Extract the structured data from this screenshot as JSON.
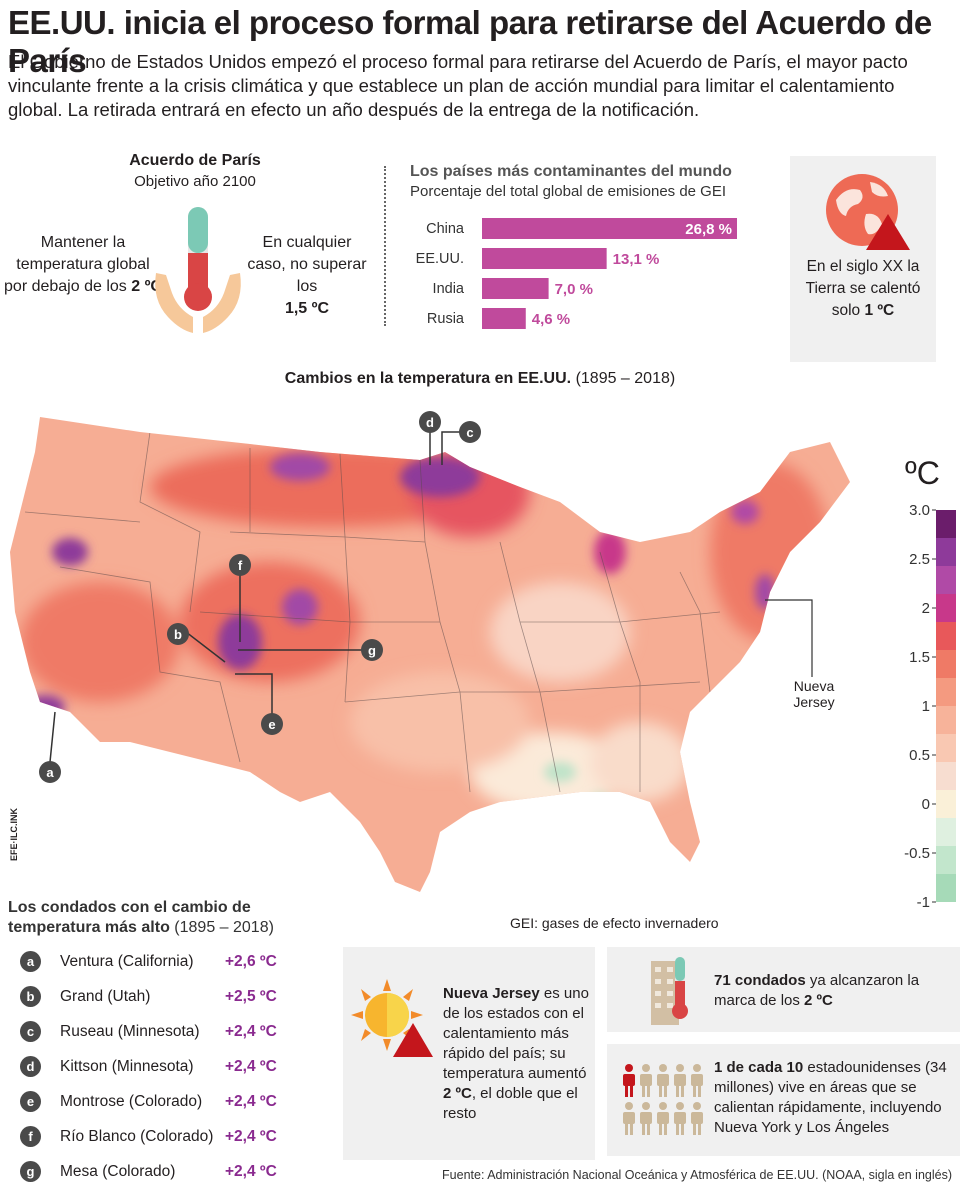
{
  "title": "EE.UU. inicia el proceso formal para retirarse del Acuerdo de París",
  "lead": "El Gobierno de Estados Unidos empezó el proceso formal para retirarse del Acuerdo de París, el mayor pacto vinculante frente a la crisis climática y que establece un plan de acción mundial para limitar el calentamiento global. La retirada entrará en efecto un año después de la entrega de la notificación.",
  "paris": {
    "title": "Acuerdo de París",
    "subtitle": "Objetivo año 2100",
    "left_text": "Mantener la temperatura global por debajo de los",
    "left_value": "2 ºC",
    "right_text": "En cualquier caso, no superar los",
    "right_value": "1,5 ºC"
  },
  "emitters": {
    "title": "Los países más contaminantes del mundo",
    "subtitle": "Porcentaje del total global de emisiones de GEI",
    "color": "#c04a9c",
    "chart_data": {
      "type": "bar",
      "orientation": "horizontal",
      "categories": [
        "China",
        "EE.UU.",
        "India",
        "Rusia"
      ],
      "values": [
        26.8,
        13.1,
        7.0,
        4.6
      ],
      "labels": [
        "26,8 %",
        "13,1 %",
        "7,0 %",
        "4,6 %"
      ]
    }
  },
  "globe_card": {
    "text": "En el siglo XX la Tierra se calentó solo",
    "value": "1 ºC"
  },
  "map": {
    "title": "Cambios en la temperatura en EE.UU.",
    "period": "(1895 – 2018)",
    "legend_unit": "ºC",
    "legend_ticks": [
      "3.0",
      "2.5",
      "2",
      "1.5",
      "1",
      "0.5",
      "0",
      "-0.5",
      "-1"
    ],
    "legend_colors": [
      "#6b1d6b",
      "#8e3a9a",
      "#b04aa6",
      "#c8388a",
      "#e8585a",
      "#ef7a66",
      "#f49a80",
      "#f7b39a",
      "#f9c8b2",
      "#f7ddd0",
      "#faf0d8",
      "#dff0e0",
      "#c2e6cc",
      "#a6dab8"
    ],
    "nj_label": "Nueva Jersey",
    "markers": [
      "a",
      "b",
      "c",
      "d",
      "e",
      "f",
      "g"
    ],
    "efe_tag": "EFE·ILC.INK"
  },
  "counties": {
    "title": "Los condados con el cambio de temperatura más alto",
    "period": "(1895 – 2018)",
    "rows": [
      {
        "badge": "a",
        "name": "Ventura (California)",
        "value": "+2,6 ºC"
      },
      {
        "badge": "b",
        "name": "Grand (Utah)",
        "value": "+2,5 ºC"
      },
      {
        "badge": "c",
        "name": "Ruseau (Minnesota)",
        "value": "+2,4 ºC"
      },
      {
        "badge": "d",
        "name": "Kittson (Minnesota)",
        "value": "+2,4 ºC"
      },
      {
        "badge": "e",
        "name": "Montrose (Colorado)",
        "value": "+2,4 ºC"
      },
      {
        "badge": "f",
        "name": "Río Blanco (Colorado)",
        "value": "+2,4 ºC"
      },
      {
        "badge": "g",
        "name": "Mesa (Colorado)",
        "value": "+2,4 ºC"
      }
    ]
  },
  "gei_note": "GEI: gases de efecto invernadero",
  "nj_card": {
    "bold": "Nueva Jersey",
    "text1": " es uno de los estados con el calentamiento más rápido del país; su temperatura aumentó ",
    "bold2": "2 ºC",
    "text2": ", el doble que el resto"
  },
  "counties_card": {
    "bold": "71 condados",
    "text1": " ya alcanzaron la marca de los ",
    "bold2": "2 ºC"
  },
  "people_card": {
    "bold": "1 de cada 10",
    "text": " estadounidenses (34 millones) vive en áreas que se calientan rápidamente, incluyendo Nueva York y Los Ángeles"
  },
  "source": "Fuente: Administración Nacional Oceánica y Atmosférica de EE.UU. (NOAA, sigla en inglés)"
}
